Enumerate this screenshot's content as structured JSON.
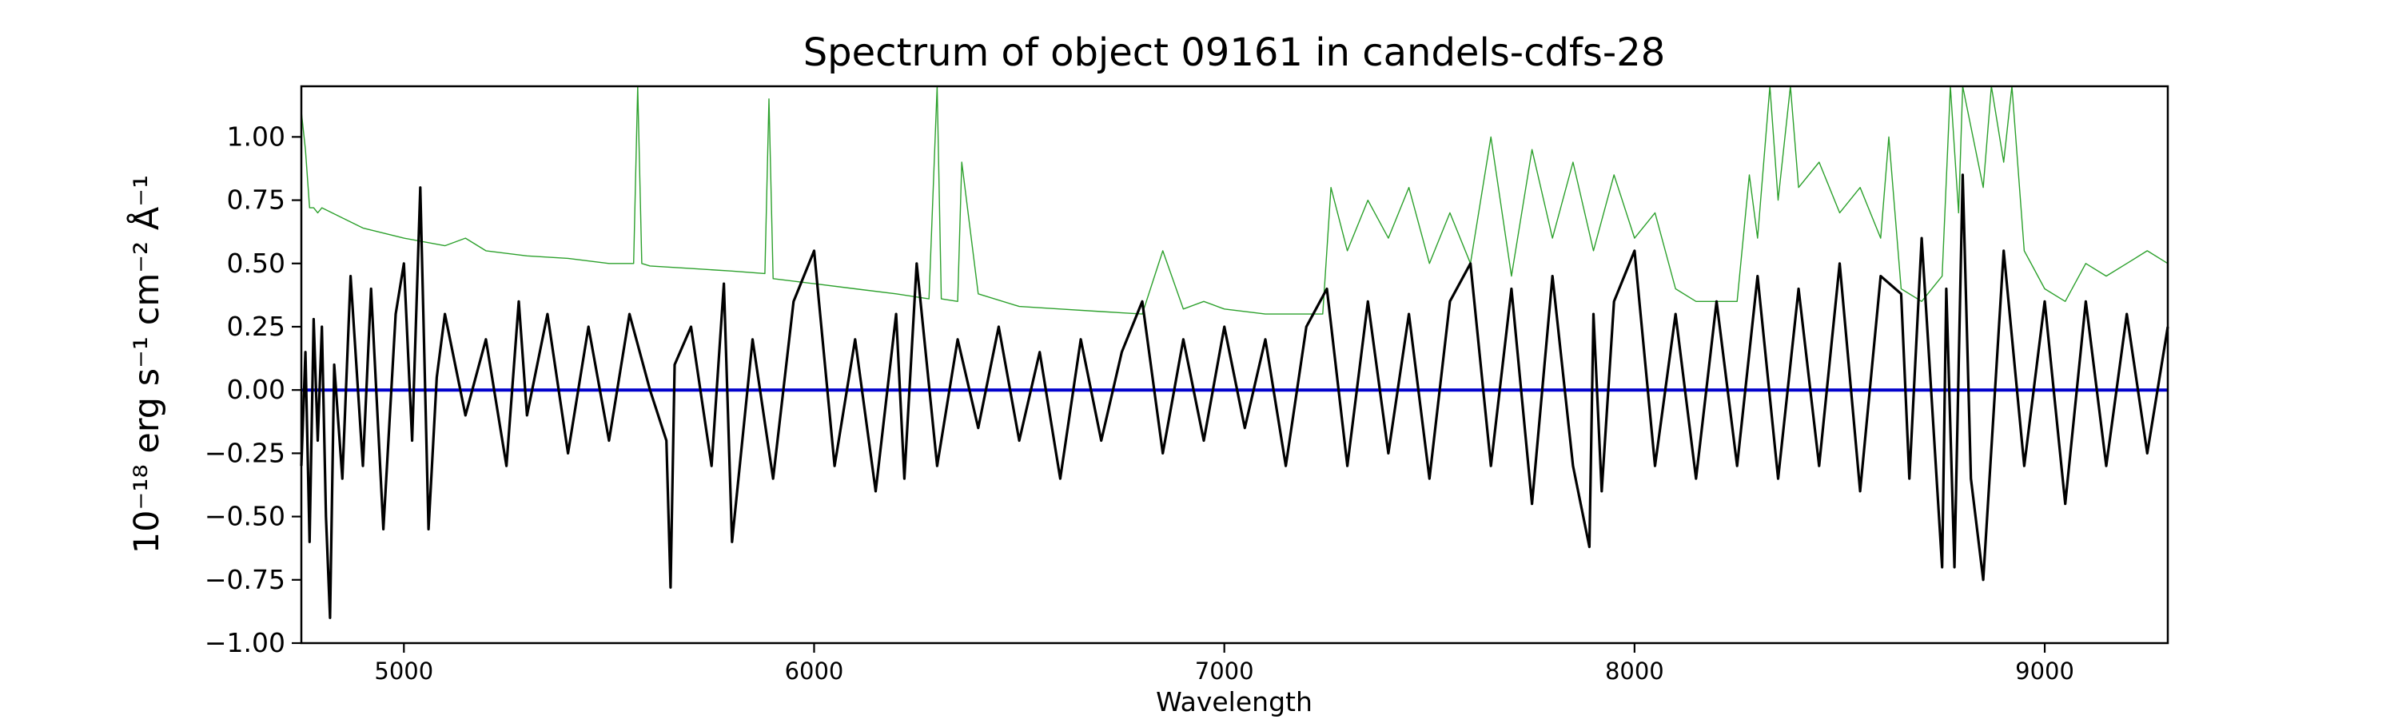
{
  "chart_data": {
    "type": "line",
    "title": "Spectrum of object 09161 in candels-cdfs-28",
    "xlabel": "Wavelength",
    "ylabel": "10⁻¹⁸ erg s⁻¹ cm⁻² Å⁻¹",
    "xlim": [
      4750,
      9300
    ],
    "ylim": [
      -1.0,
      1.2
    ],
    "x_ticks": [
      5000,
      6000,
      7000,
      8000,
      9000
    ],
    "y_ticks": [
      -1.0,
      -0.75,
      -0.5,
      -0.25,
      0.0,
      0.25,
      0.5,
      0.75,
      1.0
    ],
    "y_tick_labels": [
      "−1.00",
      "−0.75",
      "−0.50",
      "−0.25",
      "0.00",
      "0.25",
      "0.50",
      "0.75",
      "1.00"
    ],
    "grid": false,
    "legend": "none",
    "series": [
      {
        "role": "flux",
        "color": "#000000",
        "x": [
          4750,
          4760,
          4770,
          4780,
          4790,
          4800,
          4810,
          4820,
          4830,
          4850,
          4870,
          4900,
          4920,
          4950,
          4980,
          5000,
          5020,
          5040,
          5060,
          5080,
          5100,
          5150,
          5200,
          5250,
          5280,
          5300,
          5350,
          5400,
          5450,
          5500,
          5550,
          5600,
          5640,
          5650,
          5660,
          5700,
          5750,
          5780,
          5800,
          5850,
          5900,
          5950,
          6000,
          6050,
          6100,
          6150,
          6200,
          6220,
          6250,
          6300,
          6350,
          6400,
          6450,
          6500,
          6550,
          6600,
          6650,
          6700,
          6750,
          6800,
          6850,
          6900,
          6950,
          7000,
          7050,
          7100,
          7150,
          7200,
          7250,
          7300,
          7350,
          7400,
          7450,
          7500,
          7550,
          7600,
          7650,
          7700,
          7750,
          7800,
          7850,
          7890,
          7900,
          7920,
          7950,
          8000,
          8050,
          8100,
          8150,
          8200,
          8250,
          8300,
          8350,
          8400,
          8450,
          8500,
          8550,
          8600,
          8650,
          8670,
          8700,
          8750,
          8760,
          8780,
          8800,
          8820,
          8850,
          8900,
          8950,
          9000,
          9050,
          9100,
          9150,
          9200,
          9250,
          9300
        ],
        "y": [
          -0.3,
          0.15,
          -0.6,
          0.28,
          -0.2,
          0.25,
          -0.5,
          -0.9,
          0.1,
          -0.35,
          0.45,
          -0.3,
          0.4,
          -0.55,
          0.3,
          0.5,
          -0.2,
          0.8,
          -0.55,
          0.05,
          0.3,
          -0.1,
          0.2,
          -0.3,
          0.35,
          -0.1,
          0.3,
          -0.25,
          0.25,
          -0.2,
          0.3,
          0.0,
          -0.2,
          -0.78,
          0.1,
          0.25,
          -0.3,
          0.42,
          -0.6,
          0.2,
          -0.35,
          0.35,
          0.55,
          -0.3,
          0.2,
          -0.4,
          0.3,
          -0.35,
          0.5,
          -0.3,
          0.2,
          -0.15,
          0.25,
          -0.2,
          0.15,
          -0.35,
          0.2,
          -0.2,
          0.15,
          0.35,
          -0.25,
          0.2,
          -0.2,
          0.25,
          -0.15,
          0.2,
          -0.3,
          0.25,
          0.4,
          -0.3,
          0.35,
          -0.25,
          0.3,
          -0.35,
          0.35,
          0.5,
          -0.3,
          0.4,
          -0.45,
          0.45,
          -0.3,
          -0.62,
          0.3,
          -0.4,
          0.35,
          0.55,
          -0.3,
          0.3,
          -0.35,
          0.35,
          -0.3,
          0.45,
          -0.35,
          0.4,
          -0.3,
          0.5,
          -0.4,
          0.45,
          0.38,
          -0.35,
          0.6,
          -0.7,
          0.4,
          -0.7,
          0.85,
          -0.35,
          -0.75,
          0.55,
          -0.3,
          0.35,
          -0.45,
          0.35,
          -0.3,
          0.3,
          -0.25,
          0.25
        ]
      },
      {
        "role": "error",
        "color": "#2ca02c",
        "x": [
          4750,
          4760,
          4770,
          4780,
          4790,
          4800,
          4850,
          4900,
          5000,
          5100,
          5150,
          5200,
          5300,
          5400,
          5500,
          5560,
          5570,
          5580,
          5600,
          5700,
          5800,
          5880,
          5890,
          5900,
          5950,
          6000,
          6100,
          6200,
          6280,
          6300,
          6310,
          6350,
          6360,
          6400,
          6500,
          6600,
          6700,
          6800,
          6850,
          6900,
          6950,
          7000,
          7100,
          7200,
          7240,
          7260,
          7300,
          7350,
          7400,
          7450,
          7500,
          7550,
          7600,
          7650,
          7700,
          7750,
          7800,
          7850,
          7900,
          7950,
          8000,
          8050,
          8100,
          8150,
          8200,
          8250,
          8280,
          8300,
          8330,
          8350,
          8380,
          8400,
          8450,
          8500,
          8550,
          8600,
          8620,
          8650,
          8700,
          8750,
          8770,
          8790,
          8800,
          8850,
          8870,
          8900,
          8920,
          8950,
          9000,
          9050,
          9100,
          9150,
          9200,
          9250,
          9300
        ],
        "y": [
          1.1,
          0.95,
          0.72,
          0.72,
          0.7,
          0.72,
          0.68,
          0.64,
          0.6,
          0.57,
          0.6,
          0.55,
          0.53,
          0.52,
          0.5,
          0.5,
          1.2,
          0.5,
          0.49,
          0.48,
          0.47,
          0.46,
          1.15,
          0.44,
          0.43,
          0.42,
          0.4,
          0.38,
          0.36,
          1.2,
          0.36,
          0.35,
          0.9,
          0.38,
          0.33,
          0.32,
          0.31,
          0.3,
          0.55,
          0.32,
          0.35,
          0.32,
          0.3,
          0.3,
          0.3,
          0.8,
          0.55,
          0.75,
          0.6,
          0.8,
          0.5,
          0.7,
          0.5,
          1.0,
          0.45,
          0.95,
          0.6,
          0.9,
          0.55,
          0.85,
          0.6,
          0.7,
          0.4,
          0.35,
          0.35,
          0.35,
          0.85,
          0.6,
          1.2,
          0.75,
          1.2,
          0.8,
          0.9,
          0.7,
          0.8,
          0.6,
          1.0,
          0.4,
          0.35,
          0.45,
          1.2,
          0.7,
          1.2,
          0.8,
          1.2,
          0.9,
          1.2,
          0.55,
          0.4,
          0.35,
          0.5,
          0.45,
          0.5,
          0.55,
          0.5
        ]
      },
      {
        "role": "continuum",
        "color": "#0000cc",
        "x": [
          4750,
          9300
        ],
        "y": [
          0.0,
          0.0
        ]
      }
    ]
  }
}
